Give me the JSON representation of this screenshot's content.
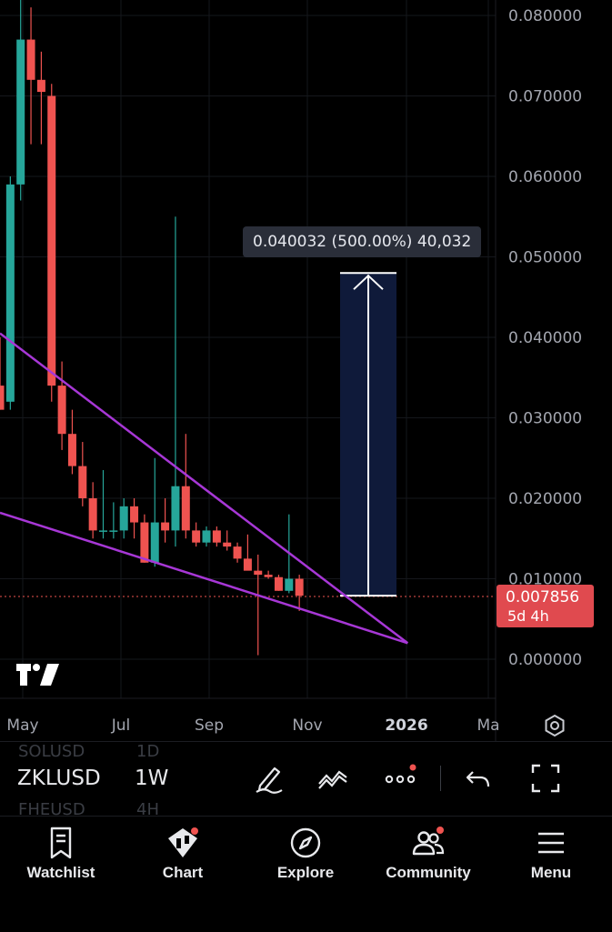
{
  "chart_data": {
    "type": "candlestick",
    "symbol": "ZKLUSD",
    "interval": "1W",
    "y_ticks": [
      "0.080000",
      "0.070000",
      "0.060000",
      "0.050000",
      "0.040000",
      "0.030000",
      "0.020000",
      "0.010000",
      "0.000000"
    ],
    "x_ticks": [
      "May",
      "Jul",
      "Sep",
      "Nov",
      "2026",
      "Ma"
    ],
    "ylim": [
      0,
      0.082
    ],
    "candles": [
      {
        "o": 0.034,
        "h": 0.04,
        "l": 0.031,
        "c": 0.031
      },
      {
        "o": 0.032,
        "h": 0.06,
        "l": 0.031,
        "c": 0.059
      },
      {
        "o": 0.059,
        "h": 0.086,
        "l": 0.057,
        "c": 0.077
      },
      {
        "o": 0.077,
        "h": 0.081,
        "l": 0.064,
        "c": 0.072
      },
      {
        "o": 0.072,
        "h": 0.0755,
        "l": 0.064,
        "c": 0.0705
      },
      {
        "o": 0.07,
        "h": 0.0715,
        "l": 0.032,
        "c": 0.034
      },
      {
        "o": 0.034,
        "h": 0.037,
        "l": 0.026,
        "c": 0.028
      },
      {
        "o": 0.028,
        "h": 0.031,
        "l": 0.023,
        "c": 0.024
      },
      {
        "o": 0.024,
        "h": 0.027,
        "l": 0.019,
        "c": 0.02
      },
      {
        "o": 0.02,
        "h": 0.022,
        "l": 0.015,
        "c": 0.016
      },
      {
        "o": 0.016,
        "h": 0.0235,
        "l": 0.015,
        "c": 0.016
      },
      {
        "o": 0.016,
        "h": 0.0195,
        "l": 0.015,
        "c": 0.016
      },
      {
        "o": 0.016,
        "h": 0.02,
        "l": 0.015,
        "c": 0.019
      },
      {
        "o": 0.019,
        "h": 0.02,
        "l": 0.015,
        "c": 0.017
      },
      {
        "o": 0.017,
        "h": 0.018,
        "l": 0.012,
        "c": 0.012
      },
      {
        "o": 0.012,
        "h": 0.025,
        "l": 0.0115,
        "c": 0.017
      },
      {
        "o": 0.017,
        "h": 0.02,
        "l": 0.0145,
        "c": 0.016
      },
      {
        "o": 0.016,
        "h": 0.055,
        "l": 0.014,
        "c": 0.0215
      },
      {
        "o": 0.0215,
        "h": 0.028,
        "l": 0.015,
        "c": 0.016
      },
      {
        "o": 0.016,
        "h": 0.017,
        "l": 0.014,
        "c": 0.0145
      },
      {
        "o": 0.0145,
        "h": 0.0165,
        "l": 0.014,
        "c": 0.016
      },
      {
        "o": 0.016,
        "h": 0.0165,
        "l": 0.014,
        "c": 0.0145
      },
      {
        "o": 0.0145,
        "h": 0.016,
        "l": 0.0135,
        "c": 0.014
      },
      {
        "o": 0.014,
        "h": 0.0145,
        "l": 0.012,
        "c": 0.0125
      },
      {
        "o": 0.0125,
        "h": 0.0155,
        "l": 0.0115,
        "c": 0.011
      },
      {
        "o": 0.011,
        "h": 0.013,
        "l": 0.0005,
        "c": 0.0105
      },
      {
        "o": 0.0105,
        "h": 0.011,
        "l": 0.01,
        "c": 0.0102
      },
      {
        "o": 0.0102,
        "h": 0.0105,
        "l": 0.0085,
        "c": 0.0085
      },
      {
        "o": 0.0085,
        "h": 0.018,
        "l": 0.0082,
        "c": 0.01
      },
      {
        "o": 0.01,
        "h": 0.0105,
        "l": 0.006,
        "c": 0.0079
      }
    ],
    "current_price": "0.007856",
    "countdown": "5d 4h",
    "measurement": {
      "label": "0.040032 (500.00%) 40,032",
      "from": 0.0079,
      "to": 0.048
    },
    "trendlines": [
      {
        "from": [
          0,
          0.0405
        ],
        "to": [
          39.5,
          0.002
        ]
      },
      {
        "from": [
          0,
          0.0182
        ],
        "to": [
          39.5,
          0.002
        ]
      }
    ],
    "colors": {
      "up": "#26a69a",
      "down": "#ef5350",
      "trendline": "#a737d6",
      "measure_fill": "#0f1a3a",
      "price_tag": "#e04a4f"
    }
  },
  "toolbar": {
    "symbol": "ZKLUSD",
    "interval": "1W",
    "ghost_symbol_above": "SOLUSD",
    "ghost_interval_above": "1D",
    "ghost_symbol_below": "FHEUSD",
    "ghost_interval_below": "4H",
    "icons": [
      "draw-icon",
      "indicators-icon",
      "more-icon",
      "undo-icon",
      "fullscreen-icon"
    ]
  },
  "nav": {
    "items": [
      {
        "label": "Watchlist",
        "icon": "watchlist-icon"
      },
      {
        "label": "Chart",
        "icon": "chart-icon"
      },
      {
        "label": "Explore",
        "icon": "compass-icon"
      },
      {
        "label": "Community",
        "icon": "community-icon"
      },
      {
        "label": "Menu",
        "icon": "menu-icon"
      }
    ]
  }
}
